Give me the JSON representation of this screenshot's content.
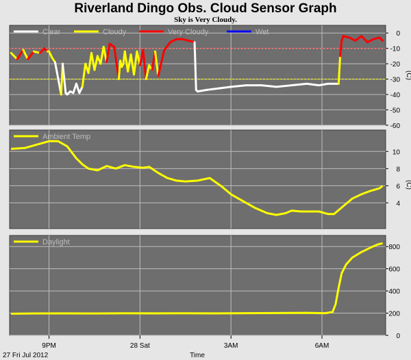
{
  "title": "Riverland Dingo Obs. Cloud Sensor Graph",
  "subtitle": "Sky is Very Cloudy.",
  "footer_date": "27 Fri Jul 2012",
  "footer_time_label": "Time",
  "x_ticks": [
    {
      "label": "9PM",
      "hour": 21
    },
    {
      "label": "28 Sat",
      "hour": 24
    },
    {
      "label": "3AM",
      "hour": 27
    },
    {
      "label": "6AM",
      "hour": 30
    }
  ],
  "colors": {
    "background": "#e6e6e6",
    "plot_bg": "#6e6e6e",
    "grid": "#bebebe",
    "clear": "#ffffff",
    "cloudy": "#ffff00",
    "very_cloudy": "#ff0000",
    "wet": "#0000ff",
    "threshold_red": "#ff3030",
    "threshold_yellow": "#ffff00"
  },
  "chart_data": [
    {
      "type": "line",
      "name": "cloud",
      "ylabel": "(C)",
      "ylim": [
        -60,
        5
      ],
      "yticks": [
        0,
        -10,
        -20,
        -30,
        -40,
        -50,
        -60
      ],
      "xlim": [
        19.7,
        32.1
      ],
      "thresholds": [
        -10,
        -30
      ],
      "legend": [
        {
          "label": "Clear",
          "color": "#ffffff"
        },
        {
          "label": "Cloudy",
          "color": "#ffff00"
        },
        {
          "label": "Very Cloudy",
          "color": "#ff0000"
        },
        {
          "label": "Wet",
          "color": "#0000ff"
        }
      ],
      "x": [
        19.75,
        19.95,
        20.15,
        20.3,
        20.5,
        20.7,
        20.85,
        20.95,
        21.0,
        21.1,
        21.2,
        21.4,
        21.45,
        21.55,
        21.6,
        21.7,
        21.8,
        21.9,
        22.0,
        22.1,
        22.2,
        22.3,
        22.4,
        22.5,
        22.6,
        22.7,
        22.8,
        22.9,
        23.0,
        23.15,
        23.3,
        23.35,
        23.4,
        23.45,
        23.5,
        23.6,
        23.7,
        23.8,
        23.9,
        24.0,
        24.1,
        24.2,
        24.3,
        24.4,
        24.5,
        24.6,
        24.8,
        25.0,
        25.2,
        25.4,
        25.6,
        25.8,
        25.85,
        25.9,
        26.2,
        26.6,
        27.0,
        27.5,
        28.0,
        28.5,
        29.0,
        29.5,
        29.9,
        30.2,
        30.4,
        30.55,
        30.6,
        30.65,
        30.7,
        30.9,
        31.1,
        31.3,
        31.5,
        31.7,
        31.9,
        32.0
      ],
      "y": [
        -13,
        -17,
        -11,
        -17,
        -12,
        -13,
        -10,
        -12,
        -12,
        -16,
        -19,
        -40,
        -20,
        -39,
        -40,
        -38,
        -39,
        -33,
        -39,
        -35,
        -20,
        -26,
        -13,
        -24,
        -15,
        -20,
        -9,
        -19,
        -7,
        -9,
        -30,
        -18,
        -22,
        -20,
        -12,
        -25,
        -14,
        -27,
        -12,
        -21,
        -11,
        -30,
        -21,
        -24,
        -12,
        -28,
        -11,
        -6,
        -4,
        -4,
        -5,
        -6,
        -37,
        -38,
        -37,
        -36,
        -35,
        -34,
        -34,
        -35,
        -34,
        -33,
        -34,
        -33,
        -33,
        -33,
        -15,
        -5,
        -2,
        -3,
        -5,
        -2,
        -6,
        -4,
        -3,
        -5
      ],
      "category": [
        "c",
        "c",
        "v",
        "c",
        "v",
        "c",
        "v",
        "v",
        "c",
        "c",
        "c",
        "k",
        "c",
        "k",
        "k",
        "k",
        "k",
        "k",
        "k",
        "k",
        "c",
        "c",
        "c",
        "c",
        "c",
        "c",
        "c",
        "c",
        "v",
        "v",
        "v",
        "c",
        "c",
        "c",
        "c",
        "c",
        "c",
        "c",
        "c",
        "c",
        "v",
        "v",
        "c",
        "c",
        "v",
        "c",
        "v",
        "v",
        "v",
        "v",
        "v",
        "v",
        "k",
        "k",
        "k",
        "k",
        "k",
        "k",
        "k",
        "k",
        "k",
        "k",
        "k",
        "k",
        "k",
        "k",
        "c",
        "v",
        "v",
        "v",
        "v",
        "v",
        "v",
        "v",
        "v",
        "v"
      ]
    },
    {
      "type": "line",
      "name": "Ambient Temp",
      "ylabel": "(C)",
      "ylim": [
        1,
        12.5
      ],
      "yticks": [
        4,
        6,
        8,
        10
      ],
      "xlim": [
        19.7,
        32.1
      ],
      "legend": [
        {
          "label": "Ambient Temp",
          "color": "#ffff00"
        }
      ],
      "x": [
        19.75,
        20.2,
        20.6,
        21.0,
        21.3,
        21.6,
        21.9,
        22.1,
        22.3,
        22.6,
        22.9,
        23.2,
        23.5,
        23.8,
        24.1,
        24.3,
        24.6,
        24.9,
        25.2,
        25.5,
        25.9,
        26.3,
        26.7,
        27.0,
        27.4,
        27.8,
        28.2,
        28.5,
        28.8,
        29.0,
        29.3,
        29.6,
        29.9,
        30.2,
        30.4,
        30.7,
        31.0,
        31.3,
        31.6,
        31.9,
        32.0
      ],
      "y": [
        10.3,
        10.4,
        10.8,
        11.2,
        11.2,
        10.6,
        9.2,
        8.5,
        8.0,
        7.8,
        8.3,
        8.0,
        8.4,
        8.2,
        8.1,
        8.2,
        7.5,
        6.9,
        6.6,
        6.5,
        6.6,
        6.9,
        5.9,
        5.0,
        4.2,
        3.4,
        2.8,
        2.6,
        2.8,
        3.1,
        3.0,
        3.0,
        3.0,
        2.7,
        2.7,
        3.6,
        4.5,
        5.0,
        5.4,
        5.7,
        6.0
      ]
    },
    {
      "type": "line",
      "name": "Daylight",
      "ylim": [
        0,
        900
      ],
      "yticks": [
        0,
        200,
        400,
        600,
        800
      ],
      "xlim": [
        19.7,
        32.1
      ],
      "legend": [
        {
          "label": "Daylight",
          "color": "#ffff00"
        }
      ],
      "x": [
        19.75,
        20.5,
        21.5,
        22.5,
        23.5,
        24.5,
        25.5,
        26.5,
        27.5,
        28.5,
        29.5,
        30.1,
        30.35,
        30.45,
        30.55,
        30.65,
        30.8,
        31.0,
        31.3,
        31.6,
        31.85,
        32.0
      ],
      "y": [
        195,
        197,
        198,
        197,
        199,
        198,
        199,
        198,
        200,
        201,
        203,
        200,
        210,
        280,
        430,
        560,
        640,
        700,
        750,
        790,
        820,
        830
      ]
    }
  ]
}
